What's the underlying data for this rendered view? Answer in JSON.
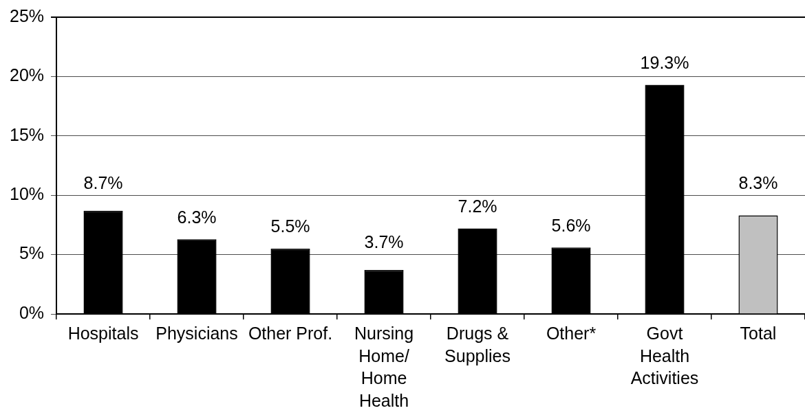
{
  "chart_data": {
    "type": "bar",
    "categories": [
      "Hospitals",
      "Physicians",
      "Other Prof.",
      "Nursing\nHome/\nHome\nHealth",
      "Drugs &\nSupplies",
      "Other*",
      "Govt\nHealth\nActivities",
      "Total"
    ],
    "values": [
      8.7,
      6.3,
      5.5,
      3.7,
      7.2,
      5.6,
      19.3,
      8.3
    ],
    "colors": [
      "#000000",
      "#000000",
      "#000000",
      "#000000",
      "#000000",
      "#000000",
      "#000000",
      "#c0c0c0"
    ],
    "value_labels": [
      "8.7%",
      "6.3%",
      "5.5%",
      "3.7%",
      "7.2%",
      "5.6%",
      "19.3%",
      "8.3%"
    ],
    "ylim": [
      0,
      25
    ],
    "yticks": [
      {
        "value": 0,
        "label": "0%"
      },
      {
        "value": 5,
        "label": "5%"
      },
      {
        "value": 10,
        "label": "10%"
      },
      {
        "value": 15,
        "label": "15%"
      },
      {
        "value": 20,
        "label": "20%"
      },
      {
        "value": 25,
        "label": "25%"
      }
    ],
    "grid": "y"
  }
}
